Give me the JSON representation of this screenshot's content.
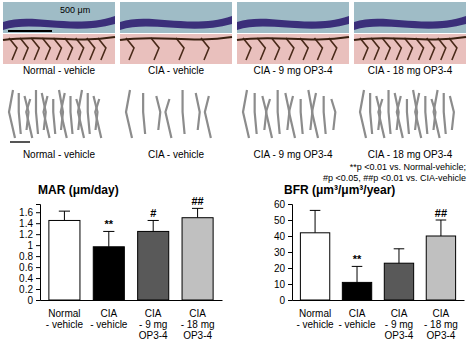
{
  "figure": {
    "histology_labels": [
      "Normal - vehicle",
      "CIA - vehicle",
      "CIA - 9 mg OP3-4",
      "CIA - 18 mg OP3-4"
    ],
    "microct_labels": [
      "Normal - vehicle",
      "CIA - vehicle",
      "CIA - 9 mg OP3-4",
      "CIA - 18 mg OP3-4"
    ],
    "scale_bar": "500 μm",
    "note": [
      "**p <0.01 vs. Normal-vehicle;",
      "#p <0.05, ##p <0.01 vs. CIA-vehicle"
    ]
  },
  "chart_data": [
    {
      "type": "bar",
      "title": "MAR (μm/day)",
      "categories": [
        "Normal\n- vehicle",
        "CIA\n- vehicle",
        "CIA\n- 9 mg\nOP3-4",
        "CIA\n- 18 mg\nOP3-4"
      ],
      "values": [
        1.45,
        0.97,
        1.25,
        1.5
      ],
      "error": [
        0.17,
        0.28,
        0.2,
        0.17
      ],
      "significance": [
        null,
        "**",
        "#",
        "##"
      ],
      "colors": [
        "#ffffff",
        "#000000",
        "#595959",
        "#c0c0c0"
      ],
      "ylim": [
        0,
        1.75
      ],
      "yticks": [
        0,
        0.2,
        0.4,
        0.6,
        0.8,
        1,
        1.2,
        1.4,
        1.6
      ],
      "grid": false
    },
    {
      "type": "bar",
      "title": "BFR (μm³/μm³/year)",
      "categories": [
        "Normal\n- vehicle",
        "CIA\n- vehicle",
        "CIA\n- 9 mg\nOP3-4",
        "CIA\n- 18 mg\nOP3-4"
      ],
      "values": [
        42,
        11,
        23,
        40
      ],
      "error": [
        14,
        10,
        9,
        10
      ],
      "significance": [
        null,
        "**",
        null,
        "##"
      ],
      "colors": [
        "#ffffff",
        "#000000",
        "#595959",
        "#c0c0c0"
      ],
      "ylim": [
        0,
        60
      ],
      "yticks": [
        0,
        10,
        20,
        30,
        40,
        50,
        60
      ],
      "grid": false
    }
  ]
}
